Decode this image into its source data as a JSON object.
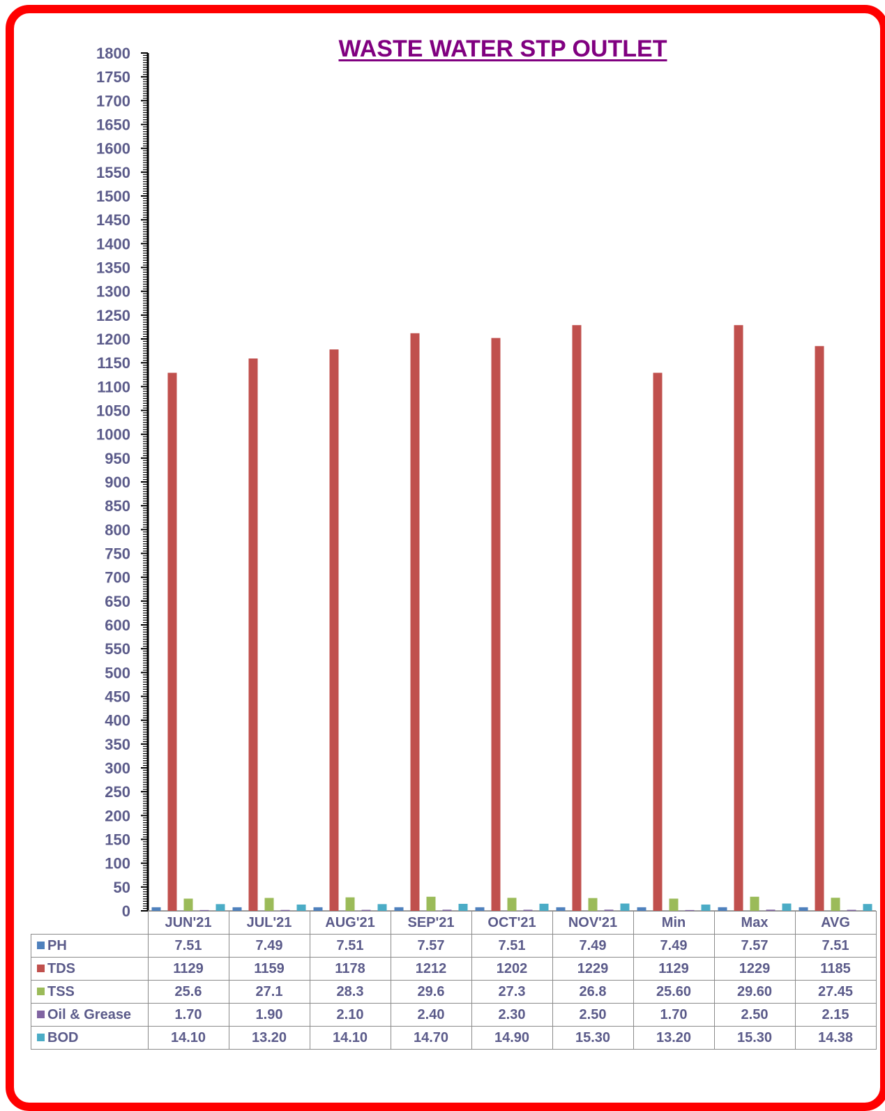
{
  "chart_data": {
    "type": "bar",
    "title": "WASTE WATER STP OUTLET",
    "categories": [
      "JUN'21",
      "JUL'21",
      "AUG'21",
      "SEP'21",
      "OCT'21",
      "NOV'21",
      "Min",
      "Max",
      "AVG"
    ],
    "ylim": [
      0,
      1800
    ],
    "ytick_step": 50,
    "legend_placement": "table-left",
    "series": [
      {
        "name": "PH",
        "color": "#4f81bd",
        "values": [
          7.51,
          7.49,
          7.51,
          7.57,
          7.51,
          7.49,
          7.49,
          7.57,
          7.51
        ],
        "labels": [
          "7.51",
          "7.49",
          "7.51",
          "7.57",
          "7.51",
          "7.49",
          "7.49",
          "7.57",
          "7.51"
        ]
      },
      {
        "name": "TDS",
        "color": "#c0504d",
        "values": [
          1129,
          1159,
          1178,
          1212,
          1202,
          1229,
          1129,
          1229,
          1185
        ],
        "labels": [
          "1129",
          "1159",
          "1178",
          "1212",
          "1202",
          "1229",
          "1129",
          "1229",
          "1185"
        ]
      },
      {
        "name": "TSS",
        "color": "#9bbb59",
        "values": [
          25.6,
          27.1,
          28.3,
          29.6,
          27.3,
          26.8,
          25.6,
          29.6,
          27.45
        ],
        "labels": [
          "25.6",
          "27.1",
          "28.3",
          "29.6",
          "27.3",
          "26.8",
          "25.60",
          "29.60",
          "27.45"
        ]
      },
      {
        "name": "Oil & Grease",
        "color": "#8064a2",
        "values": [
          1.7,
          1.9,
          2.1,
          2.4,
          2.3,
          2.5,
          1.7,
          2.5,
          2.15
        ],
        "labels": [
          "1.70",
          "1.90",
          "2.10",
          "2.40",
          "2.30",
          "2.50",
          "1.70",
          "2.50",
          "2.15"
        ]
      },
      {
        "name": "BOD",
        "color": "#4bacc6",
        "values": [
          14.1,
          13.2,
          14.1,
          14.7,
          14.9,
          15.3,
          13.2,
          15.3,
          14.38
        ],
        "labels": [
          "14.10",
          "13.20",
          "14.10",
          "14.70",
          "14.90",
          "15.30",
          "13.20",
          "15.30",
          "14.38"
        ]
      }
    ]
  }
}
